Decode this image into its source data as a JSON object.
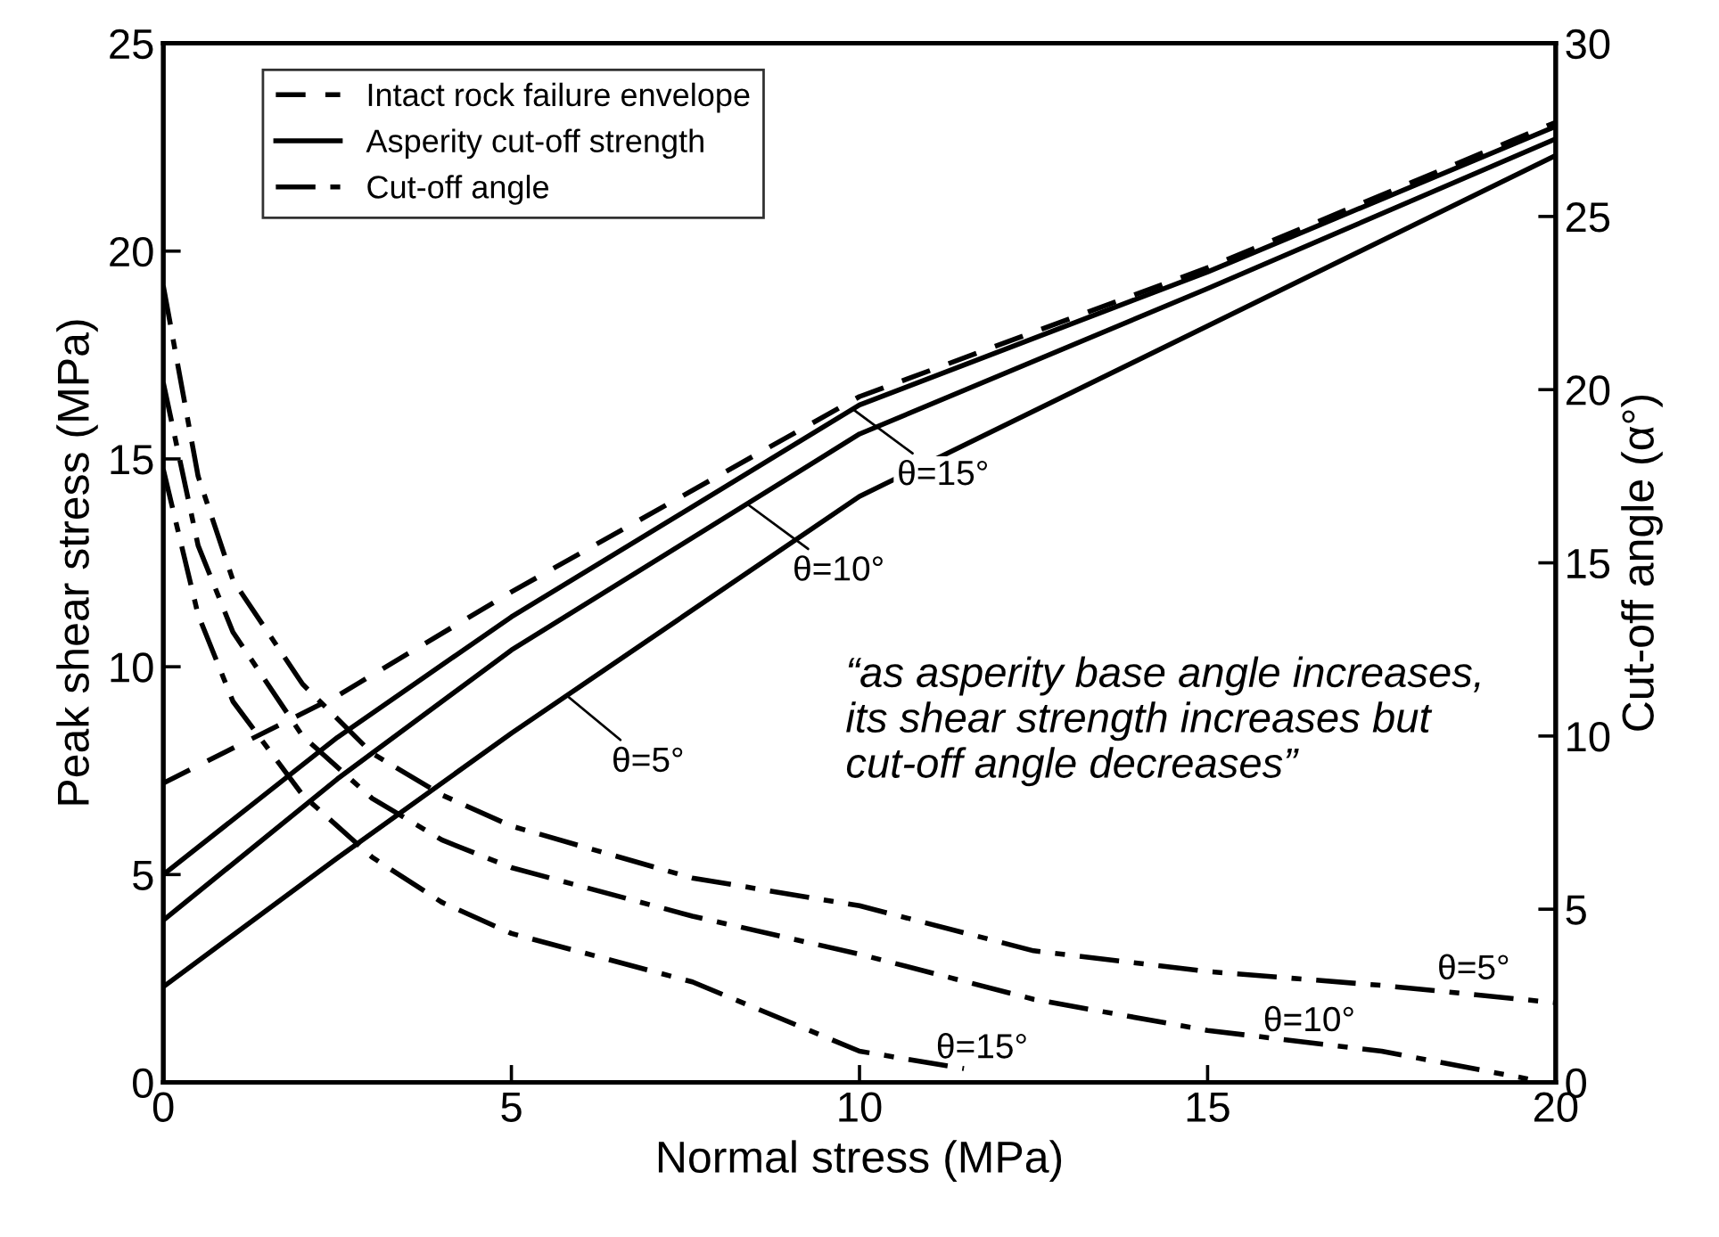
{
  "chart_data": {
    "type": "line",
    "xlabel": "Normal stress (MPa)",
    "ylabel": "Peak shear stress (MPa)",
    "y2label": "Cut-off angle (α°)",
    "xlim": [
      0,
      20
    ],
    "xticks": [
      0,
      5,
      10,
      15,
      20
    ],
    "ylim": [
      0,
      25
    ],
    "yticks": [
      0,
      5,
      10,
      15,
      20,
      25
    ],
    "y2lim": [
      0,
      30
    ],
    "y2ticks": [
      0,
      5,
      10,
      15,
      20,
      25,
      30
    ],
    "grid": false,
    "legend": "top left",
    "marker": "none",
    "series": [
      {
        "name": "Intact rock failure envelope",
        "color": "#000000",
        "line_style": "dashed",
        "x": [
          0,
          2.5,
          5,
          10,
          15,
          20
        ],
        "values": [
          7.2,
          9.3,
          11.8,
          16.5,
          19.6,
          23.1
        ]
      },
      {
        "name": "Asperity cut-off strength",
        "color": "#000000",
        "line_style": "solid",
        "x": [
          0,
          2.5,
          5,
          10,
          15,
          20
        ],
        "values": [
          5.0,
          8.3,
          11.2,
          16.3,
          19.5,
          23.0
        ]
      },
      {
        "color": "#000000",
        "line_style": "solid",
        "x": [
          0,
          2.5,
          5,
          10,
          15,
          20
        ],
        "values": [
          3.9,
          7.3,
          10.4,
          15.6,
          19.1,
          22.7
        ]
      },
      {
        "color": "#000000",
        "line_style": "solid",
        "x": [
          0,
          2.5,
          5,
          10,
          15,
          20
        ],
        "values": [
          2.3,
          5.4,
          8.4,
          14.1,
          18.2,
          22.3
        ]
      },
      {
        "name": "Cut-off angle",
        "color": "#000000",
        "line_style": "dashdot",
        "axis": "y2",
        "x": [
          0,
          0.5,
          1,
          2,
          3,
          4,
          5,
          7.6,
          10,
          12.5,
          15,
          17.5,
          20
        ],
        "values": [
          23.0,
          17.5,
          14.5,
          11.5,
          9.5,
          8.3,
          7.4,
          5.9,
          5.1,
          3.8,
          3.2,
          2.8,
          2.3
        ]
      },
      {
        "color": "#000000",
        "line_style": "dashdot",
        "axis": "y2",
        "x": [
          0,
          0.5,
          1,
          2,
          3,
          4,
          5,
          7.6,
          10,
          12.5,
          15,
          17.5,
          19.6
        ],
        "values": [
          20.2,
          15.5,
          13.0,
          10.0,
          8.2,
          7.0,
          6.2,
          4.8,
          3.7,
          2.4,
          1.5,
          0.9,
          0.1
        ]
      },
      {
        "color": "#000000",
        "line_style": "dashdot",
        "axis": "y2",
        "x": [
          0,
          0.5,
          1,
          2,
          3,
          4,
          5,
          7.6,
          10,
          11.5
        ],
        "values": [
          17.7,
          13.5,
          11.0,
          8.3,
          6.5,
          5.2,
          4.3,
          2.9,
          0.9,
          0.4
        ]
      }
    ],
    "annotations": [
      {
        "text": "θ=15°",
        "x": 9.9,
        "y": 16.2
      },
      {
        "text": "θ=10°",
        "x": 8.4,
        "y": 13.9
      },
      {
        "text": "θ=5°",
        "x": 5.8,
        "y": 9.3
      },
      "θ=5°",
      "θ=10°",
      "θ=15°",
      "“as asperity base angle increases,\nits shear strength increases but\ncut-off angle decreases”"
    ]
  }
}
